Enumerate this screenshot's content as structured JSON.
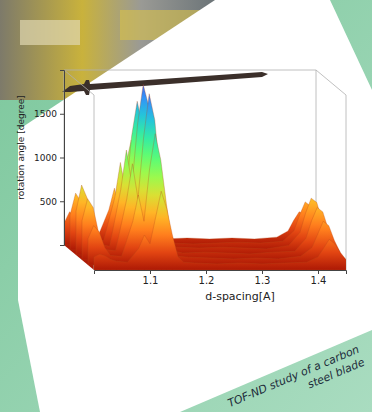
{
  "chart_data": {
    "type": "surface",
    "xlabel": "d-spacing[A]",
    "ylabel": "rotation angle [degree]",
    "annotations": [
      "TOF-ND study of a carbon",
      "steel blade"
    ],
    "x": [
      1.0,
      1.01,
      1.02,
      1.03,
      1.04,
      1.06,
      1.08,
      1.09,
      1.1,
      1.11,
      1.12,
      1.13,
      1.14,
      1.15,
      1.16,
      1.18,
      1.22,
      1.26,
      1.3,
      1.34,
      1.38,
      1.4,
      1.41,
      1.42,
      1.43,
      1.44,
      1.45
    ],
    "values": [
      [
        150,
        180,
        160,
        120,
        100,
        90,
        250,
        400,
        300,
        600,
        900,
        700,
        400,
        150,
        90,
        80,
        70,
        80,
        70,
        80,
        90,
        150,
        250,
        350,
        300,
        200,
        120
      ],
      [
        300,
        450,
        380,
        200,
        110,
        100,
        500,
        800,
        500,
        1100,
        1500,
        1200,
        700,
        250,
        100,
        90,
        80,
        70,
        80,
        70,
        100,
        200,
        350,
        500,
        450,
        280,
        150
      ],
      [
        450,
        700,
        600,
        300,
        120,
        110,
        700,
        1100,
        700,
        1400,
        1900,
        1600,
        900,
        300,
        110,
        80,
        90,
        80,
        70,
        90,
        100,
        250,
        450,
        600,
        550,
        350,
        180
      ],
      [
        500,
        800,
        650,
        320,
        130,
        100,
        750,
        1200,
        800,
        1500,
        1950,
        1700,
        950,
        320,
        120,
        90,
        80,
        90,
        80,
        70,
        110,
        260,
        480,
        650,
        600,
        380,
        190
      ],
      [
        400,
        650,
        550,
        280,
        120,
        110,
        600,
        1000,
        650,
        1300,
        1700,
        1400,
        800,
        280,
        100,
        80,
        70,
        80,
        90,
        80,
        100,
        220,
        400,
        550,
        500,
        320,
        160
      ],
      [
        250,
        380,
        320,
        180,
        100,
        90,
        400,
        650,
        400,
        900,
        1200,
        950,
        550,
        200,
        90,
        70,
        80,
        70,
        80,
        70,
        90,
        160,
        280,
        380,
        350,
        220,
        120
      ]
    ],
    "xlim": [
      1.0,
      1.45
    ],
    "xticks": [
      1.1,
      1.2,
      1.3,
      1.4
    ],
    "ylim": [
      0,
      2000
    ],
    "yticks": [
      500,
      1000,
      1500
    ]
  }
}
